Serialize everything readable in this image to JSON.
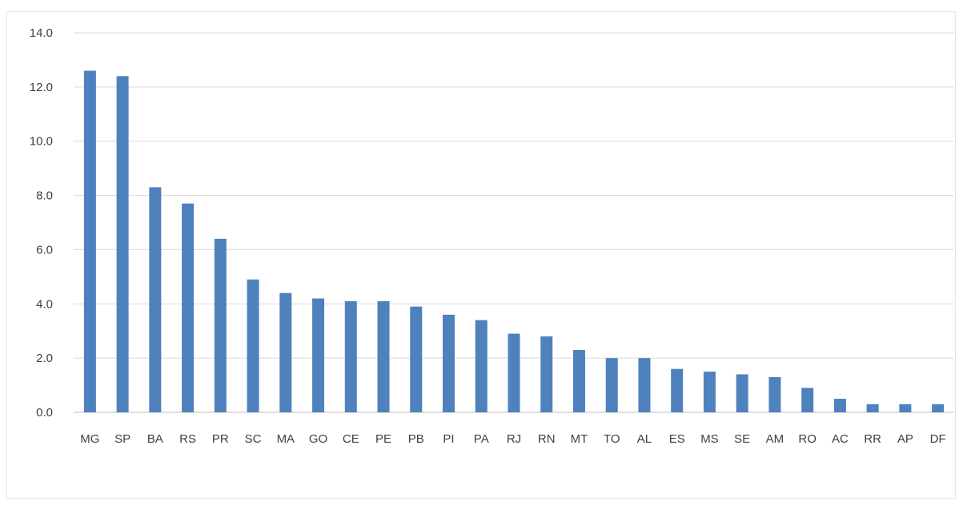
{
  "chart_data": {
    "type": "bar",
    "title": "",
    "xlabel": "",
    "ylabel": "",
    "categories": [
      "MG",
      "SP",
      "BA",
      "RS",
      "PR",
      "SC",
      "MA",
      "GO",
      "CE",
      "PE",
      "PB",
      "PI",
      "PA",
      "RJ",
      "RN",
      "MT",
      "TO",
      "AL",
      "ES",
      "MS",
      "SE",
      "AM",
      "RO",
      "AC",
      "RR",
      "AP",
      "DF"
    ],
    "values": [
      12.6,
      12.4,
      8.3,
      7.7,
      6.4,
      4.9,
      4.4,
      4.2,
      4.1,
      4.1,
      3.9,
      3.6,
      3.4,
      2.9,
      2.8,
      2.3,
      2.0,
      2.0,
      1.6,
      1.5,
      1.4,
      1.3,
      0.9,
      0.5,
      0.3,
      0.3,
      0.3
    ],
    "ylim": [
      0,
      14
    ],
    "yticks": [
      "0.0",
      "2.0",
      "4.0",
      "6.0",
      "8.0",
      "10.0",
      "12.0",
      "14.0"
    ],
    "grid": true,
    "legend": "none",
    "bar_color": "#4f81bd"
  }
}
